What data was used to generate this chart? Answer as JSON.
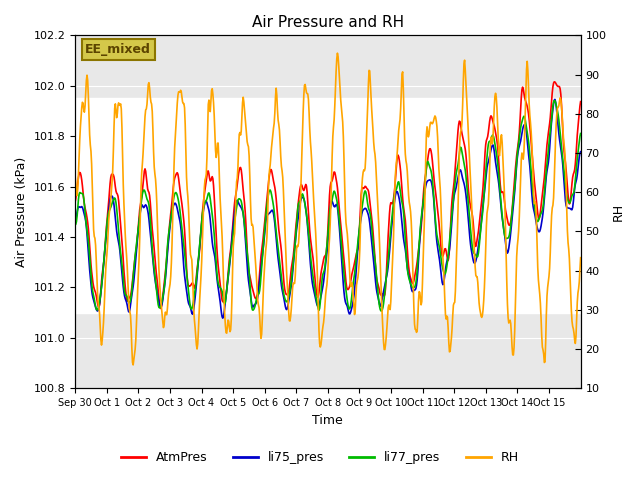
{
  "title": "Air Pressure and RH",
  "xlabel": "Time",
  "ylabel_left": "Air Pressure (kPa)",
  "ylabel_right": "RH",
  "ylim_left": [
    100.8,
    102.2
  ],
  "ylim_right": [
    10,
    100
  ],
  "annotation_text": "EE_mixed",
  "annotation_facecolor": "#d4c84a",
  "annotation_edgecolor": "#8b7500",
  "annotation_textcolor": "#5c4500",
  "shaded_region": [
    101.1,
    101.95
  ],
  "line_colors": {
    "AtmPres": "#ff0000",
    "li75_pres": "#0000cc",
    "li77_pres": "#00bb00",
    "RH": "#ffa500"
  },
  "xtick_labels": [
    "Sep 30",
    "Oct 1",
    "Oct 2",
    "Oct 3",
    "Oct 4",
    "Oct 5",
    "Oct 6",
    "Oct 7",
    "Oct 8",
    "Oct 9",
    "Oct 10",
    "Oct 11",
    "Oct 12",
    "Oct 13",
    "Oct 14",
    "Oct 15"
  ],
  "yticks_left": [
    100.8,
    101.0,
    101.2,
    101.4,
    101.6,
    101.8,
    102.0,
    102.2
  ],
  "yticks_right": [
    10,
    20,
    30,
    40,
    50,
    60,
    70,
    80,
    90,
    100
  ],
  "background_color": "#ffffff",
  "plot_bg_color": "#e8e8e8",
  "grid_color": "#ffffff"
}
